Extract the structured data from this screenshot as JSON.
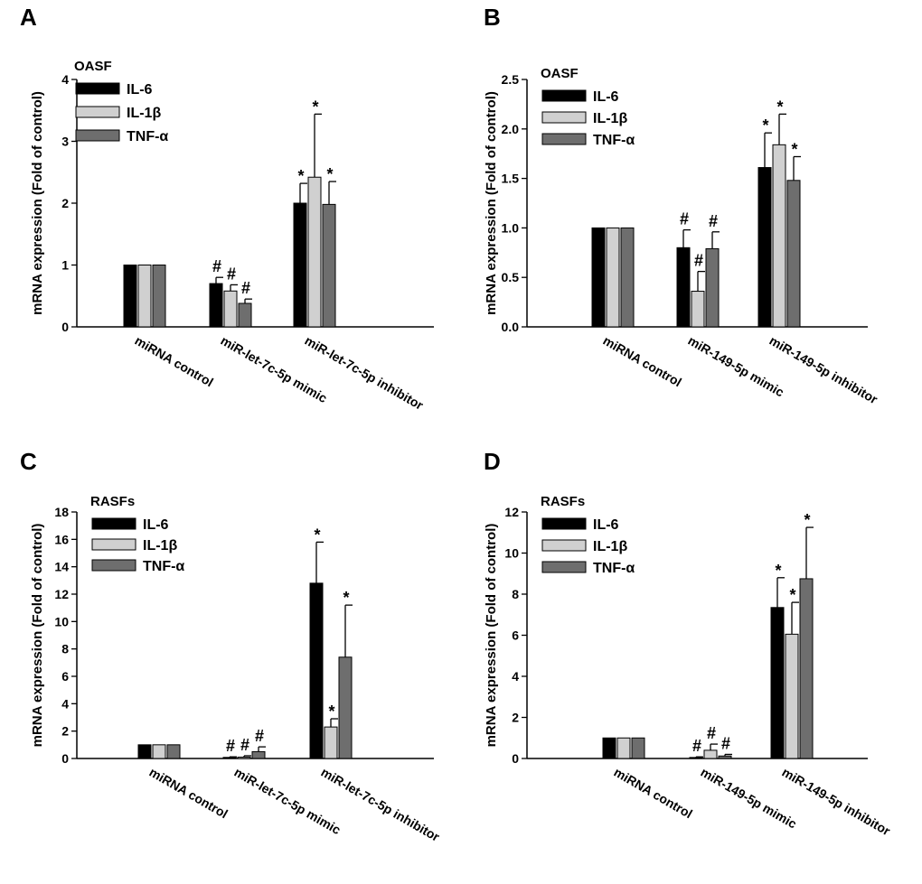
{
  "figure": {
    "series_colors": [
      "#000000",
      "#d0d0d0",
      "#6e6e6e"
    ]
  },
  "chart_data": [
    {
      "panel": "A",
      "type": "bar",
      "legend_title": "OASF",
      "ylabel": "mRNA expression  (Fold of control)",
      "ylim": [
        0,
        4
      ],
      "yticks": [
        "0",
        "1",
        "2",
        "3",
        "4"
      ],
      "categories": [
        "miRNA control",
        "miR-let-7c-5p mimic",
        "miR-let-7c-5p inhibitor"
      ],
      "series": [
        {
          "name": "IL-6",
          "values": [
            1.0,
            0.7,
            2.0
          ],
          "errors": [
            0,
            0.1,
            0.32
          ],
          "marks": [
            "",
            "#",
            "*"
          ]
        },
        {
          "name": "IL-1β",
          "values": [
            1.0,
            0.58,
            2.42
          ],
          "errors": [
            0,
            0.1,
            1.02
          ],
          "marks": [
            "",
            "#",
            "*"
          ]
        },
        {
          "name": "TNF-α",
          "values": [
            1.0,
            0.38,
            1.98
          ],
          "errors": [
            0,
            0.07,
            0.37
          ],
          "marks": [
            "",
            "#",
            "*"
          ]
        }
      ]
    },
    {
      "panel": "B",
      "type": "bar",
      "legend_title": "OASF",
      "ylabel": "mRNA expression  (Fold of control)",
      "ylim": [
        0,
        2.5
      ],
      "yticks": [
        "0.0",
        "0.5",
        "1.0",
        "1.5",
        "2.0",
        "2.5"
      ],
      "categories": [
        "miRNA control",
        "miR-149-5p mimic",
        "miR-149-5p inhibitor"
      ],
      "series": [
        {
          "name": "IL-6",
          "values": [
            1.0,
            0.8,
            1.61
          ],
          "errors": [
            0,
            0.18,
            0.35
          ],
          "marks": [
            "",
            "#",
            "*"
          ]
        },
        {
          "name": "IL-1β",
          "values": [
            1.0,
            0.36,
            1.84
          ],
          "errors": [
            0,
            0.2,
            0.31
          ],
          "marks": [
            "",
            "#",
            "*"
          ]
        },
        {
          "name": "TNF-α",
          "values": [
            1.0,
            0.79,
            1.48
          ],
          "errors": [
            0,
            0.17,
            0.24
          ],
          "marks": [
            "",
            "#",
            "*"
          ]
        }
      ]
    },
    {
      "panel": "C",
      "type": "bar",
      "legend_title": "RASFs",
      "ylabel": "mRNA expression  (Fold of control)",
      "ylim": [
        0,
        18
      ],
      "yticks": [
        "0",
        "2",
        "4",
        "6",
        "8",
        "10",
        "12",
        "14",
        "16",
        "18"
      ],
      "categories": [
        "miRNA control",
        "miR-let-7c-5p mimic",
        "miR-let-7c-5p inhibitor"
      ],
      "series": [
        {
          "name": "IL-6",
          "values": [
            1.0,
            0.08,
            12.8
          ],
          "errors": [
            0,
            0.04,
            3.0
          ],
          "marks": [
            "",
            "#",
            "*"
          ]
        },
        {
          "name": "IL-1β",
          "values": [
            1.0,
            0.1,
            2.3
          ],
          "errors": [
            0,
            0.1,
            0.6
          ],
          "marks": [
            "",
            "#",
            "*"
          ]
        },
        {
          "name": "TNF-α",
          "values": [
            1.0,
            0.5,
            7.4
          ],
          "errors": [
            0,
            0.35,
            3.8
          ],
          "marks": [
            "",
            "#",
            "*"
          ]
        }
      ]
    },
    {
      "panel": "D",
      "type": "bar",
      "legend_title": "RASFs",
      "ylabel": "mRNA expression  (Fold of control)",
      "ylim": [
        0,
        12
      ],
      "yticks": [
        "0",
        "2",
        "4",
        "6",
        "8",
        "10",
        "12"
      ],
      "categories": [
        "miRNA control",
        "miR-149-5p mimic",
        "miR-149-5p inhibitor"
      ],
      "series": [
        {
          "name": "IL-6",
          "values": [
            1.0,
            0.05,
            7.35
          ],
          "errors": [
            0,
            0.03,
            1.45
          ],
          "marks": [
            "",
            "#",
            "*"
          ]
        },
        {
          "name": "IL-1β",
          "values": [
            1.0,
            0.4,
            6.05
          ],
          "errors": [
            0,
            0.3,
            1.55
          ],
          "marks": [
            "",
            "#",
            "*"
          ]
        },
        {
          "name": "TNF-α",
          "values": [
            1.0,
            0.12,
            8.75
          ],
          "errors": [
            0,
            0.08,
            2.5
          ],
          "marks": [
            "",
            "#",
            "*"
          ]
        }
      ]
    }
  ]
}
